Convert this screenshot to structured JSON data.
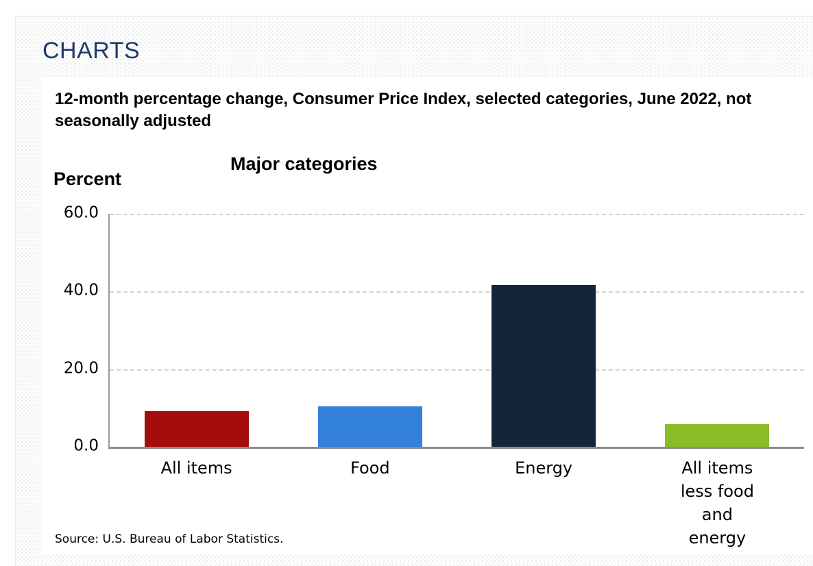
{
  "header": {
    "title": "CHARTS"
  },
  "chart": {
    "title": "12-month percentage change, Consumer Price Index, selected categories, June 2022, not seasonally adjusted",
    "subtitle": "Major categories",
    "y_axis_title": "Percent",
    "source": "Source: U.S. Bureau of Labor Statistics."
  },
  "chart_data": {
    "type": "bar",
    "title": "12-month percentage change, Consumer Price Index, selected categories, June 2022, not seasonally adjusted",
    "subtitle": "Major categories",
    "ylabel": "Percent",
    "xlabel": "",
    "categories": [
      "All items",
      "Food",
      "Energy",
      "All items less food and energy"
    ],
    "values": [
      9.1,
      10.4,
      41.6,
      5.9
    ],
    "bar_colors": [
      "#a50d0d",
      "#3480dd",
      "#132639",
      "#8abc26"
    ],
    "ylim": [
      0,
      60
    ],
    "yticks": [
      0,
      20,
      40,
      60
    ],
    "ytick_labels": [
      "0.0",
      "20.0",
      "40.0",
      "60.0"
    ],
    "grid": "horizontal-dashed",
    "legend": "none",
    "source": "Source: U.S. Bureau of Labor Statistics."
  },
  "colors": {
    "heading": "#1e3a6a",
    "grid": "#d2d2d2",
    "axis": "#8b8b8b"
  }
}
